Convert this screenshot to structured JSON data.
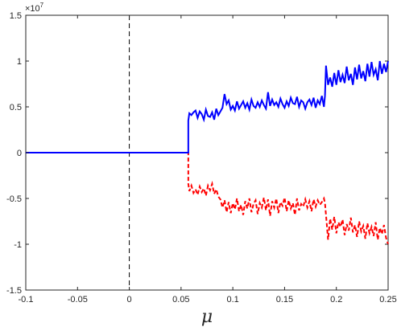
{
  "chart_data": {
    "type": "line",
    "title": "",
    "xlabel": "μ",
    "ylabel": "",
    "y_exponent_base": "×10",
    "y_exponent_power": "7",
    "xlim": [
      -0.1,
      0.25
    ],
    "ylim": [
      -15000000,
      15000000
    ],
    "xticks": [
      -0.1,
      -0.05,
      0,
      0.05,
      0.1,
      0.15,
      0.2,
      0.25
    ],
    "xtick_labels": [
      "-0.1",
      "-0.05",
      "0",
      "0.05",
      "0.1",
      "0.15",
      "0.2",
      "0.25"
    ],
    "yticks": [
      -15000000,
      -10000000,
      -5000000,
      0,
      5000000,
      10000000,
      15000000
    ],
    "ytick_labels": [
      "-1.5",
      "-1",
      "-0.5",
      "0",
      "0.5",
      "1",
      "1.5"
    ],
    "grid": false,
    "vline": {
      "x": 0,
      "style": "dashed",
      "color": "#000000"
    },
    "series": [
      {
        "color": "#0000ff",
        "style": "solid",
        "x": [
          -0.1,
          0.057,
          0.057,
          0.058,
          0.06,
          0.062,
          0.064,
          0.066,
          0.068,
          0.07,
          0.072,
          0.074,
          0.076,
          0.078,
          0.08,
          0.082,
          0.084,
          0.086,
          0.088,
          0.09,
          0.092,
          0.094,
          0.096,
          0.098,
          0.1,
          0.102,
          0.104,
          0.106,
          0.108,
          0.11,
          0.112,
          0.114,
          0.116,
          0.118,
          0.12,
          0.122,
          0.124,
          0.126,
          0.128,
          0.13,
          0.132,
          0.134,
          0.136,
          0.138,
          0.14,
          0.142,
          0.144,
          0.146,
          0.148,
          0.15,
          0.152,
          0.154,
          0.156,
          0.158,
          0.16,
          0.162,
          0.164,
          0.166,
          0.168,
          0.17,
          0.172,
          0.174,
          0.176,
          0.178,
          0.18,
          0.182,
          0.184,
          0.186,
          0.188,
          0.189,
          0.19,
          0.192,
          0.194,
          0.196,
          0.198,
          0.2,
          0.202,
          0.204,
          0.206,
          0.208,
          0.21,
          0.212,
          0.214,
          0.216,
          0.218,
          0.22,
          0.222,
          0.224,
          0.226,
          0.228,
          0.23,
          0.232,
          0.234,
          0.236,
          0.238,
          0.24,
          0.242,
          0.244,
          0.246,
          0.248,
          0.25
        ],
        "y": [
          0,
          0,
          3500000,
          4300000,
          4100000,
          4400000,
          4600000,
          3800000,
          4500000,
          4200000,
          3600000,
          4700000,
          4000000,
          3900000,
          4400000,
          3600000,
          4800000,
          4100000,
          4500000,
          4900000,
          6400000,
          5300000,
          5700000,
          4700000,
          5100000,
          4600000,
          5600000,
          4800000,
          5200000,
          5600000,
          4900000,
          5400000,
          4700000,
          5800000,
          5100000,
          4900000,
          5500000,
          5000000,
          5700000,
          5200000,
          4800000,
          6600000,
          5100000,
          5800000,
          5200000,
          5500000,
          5000000,
          5900000,
          5300000,
          4900000,
          5600000,
          5100000,
          6000000,
          5400000,
          5300000,
          6100000,
          5000000,
          5700000,
          5500000,
          4800000,
          5500000,
          5800000,
          5200000,
          6000000,
          4900000,
          5700000,
          5300000,
          6200000,
          5000000,
          6200000,
          9500000,
          7400000,
          8200000,
          7200000,
          8700000,
          7400000,
          9000000,
          7700000,
          8500000,
          7600000,
          9400000,
          7900000,
          8600000,
          7400000,
          9300000,
          8000000,
          9600000,
          8100000,
          8900000,
          7800000,
          9700000,
          8300000,
          9900000,
          8500000,
          9100000,
          7900000,
          10000000,
          8600000,
          9700000,
          8800000,
          10000000
        ]
      },
      {
        "color": "#ff0000",
        "style": "dashed",
        "x": [
          -0.1,
          0.057,
          0.057,
          0.058,
          0.06,
          0.062,
          0.064,
          0.066,
          0.068,
          0.07,
          0.072,
          0.074,
          0.076,
          0.078,
          0.08,
          0.082,
          0.084,
          0.086,
          0.088,
          0.09,
          0.092,
          0.094,
          0.096,
          0.098,
          0.1,
          0.102,
          0.104,
          0.106,
          0.108,
          0.11,
          0.112,
          0.114,
          0.116,
          0.118,
          0.12,
          0.122,
          0.124,
          0.126,
          0.128,
          0.13,
          0.132,
          0.134,
          0.136,
          0.138,
          0.14,
          0.142,
          0.144,
          0.146,
          0.148,
          0.15,
          0.152,
          0.154,
          0.156,
          0.158,
          0.16,
          0.162,
          0.164,
          0.166,
          0.168,
          0.17,
          0.172,
          0.174,
          0.176,
          0.178,
          0.18,
          0.182,
          0.184,
          0.186,
          0.188,
          0.189,
          0.19,
          0.192,
          0.194,
          0.196,
          0.198,
          0.2,
          0.202,
          0.204,
          0.206,
          0.208,
          0.21,
          0.212,
          0.214,
          0.216,
          0.218,
          0.22,
          0.222,
          0.224,
          0.226,
          0.228,
          0.23,
          0.232,
          0.234,
          0.236,
          0.238,
          0.24,
          0.242,
          0.244,
          0.246,
          0.248,
          0.25
        ],
        "y": [
          0,
          0,
          -3400000,
          -4200000,
          -3600000,
          -4400000,
          -4000000,
          -4600000,
          -3700000,
          -4300000,
          -3900000,
          -4700000,
          -3600000,
          -4100000,
          -3400000,
          -4500000,
          -4000000,
          -4800000,
          -5100000,
          -6000000,
          -5200000,
          -6500000,
          -5400000,
          -6600000,
          -5500000,
          -6200000,
          -5000000,
          -6400000,
          -5700000,
          -6800000,
          -5300000,
          -6100000,
          -5000000,
          -6500000,
          -5600000,
          -5200000,
          -6700000,
          -5500000,
          -6000000,
          -4900000,
          -6300000,
          -5100000,
          -6900000,
          -5300000,
          -6000000,
          -5000000,
          -6600000,
          -5400000,
          -5800000,
          -4900000,
          -6400000,
          -5200000,
          -6100000,
          -5500000,
          -6800000,
          -5000000,
          -6300000,
          -5600000,
          -5900000,
          -5100000,
          -6000000,
          -5300000,
          -6400000,
          -5100000,
          -5900000,
          -5200000,
          -5700000,
          -5400000,
          -5000000,
          -5500000,
          -6800000,
          -9500000,
          -7200000,
          -8400000,
          -7000000,
          -8800000,
          -7600000,
          -8100000,
          -7300000,
          -9000000,
          -7800000,
          -8500000,
          -7100000,
          -8700000,
          -7900000,
          -9200000,
          -7500000,
          -8600000,
          -8000000,
          -9400000,
          -7700000,
          -8800000,
          -8100000,
          -9100000,
          -7600000,
          -9500000,
          -8200000,
          -8900000,
          -7900000,
          -9300000,
          -10000000
        ]
      }
    ]
  }
}
